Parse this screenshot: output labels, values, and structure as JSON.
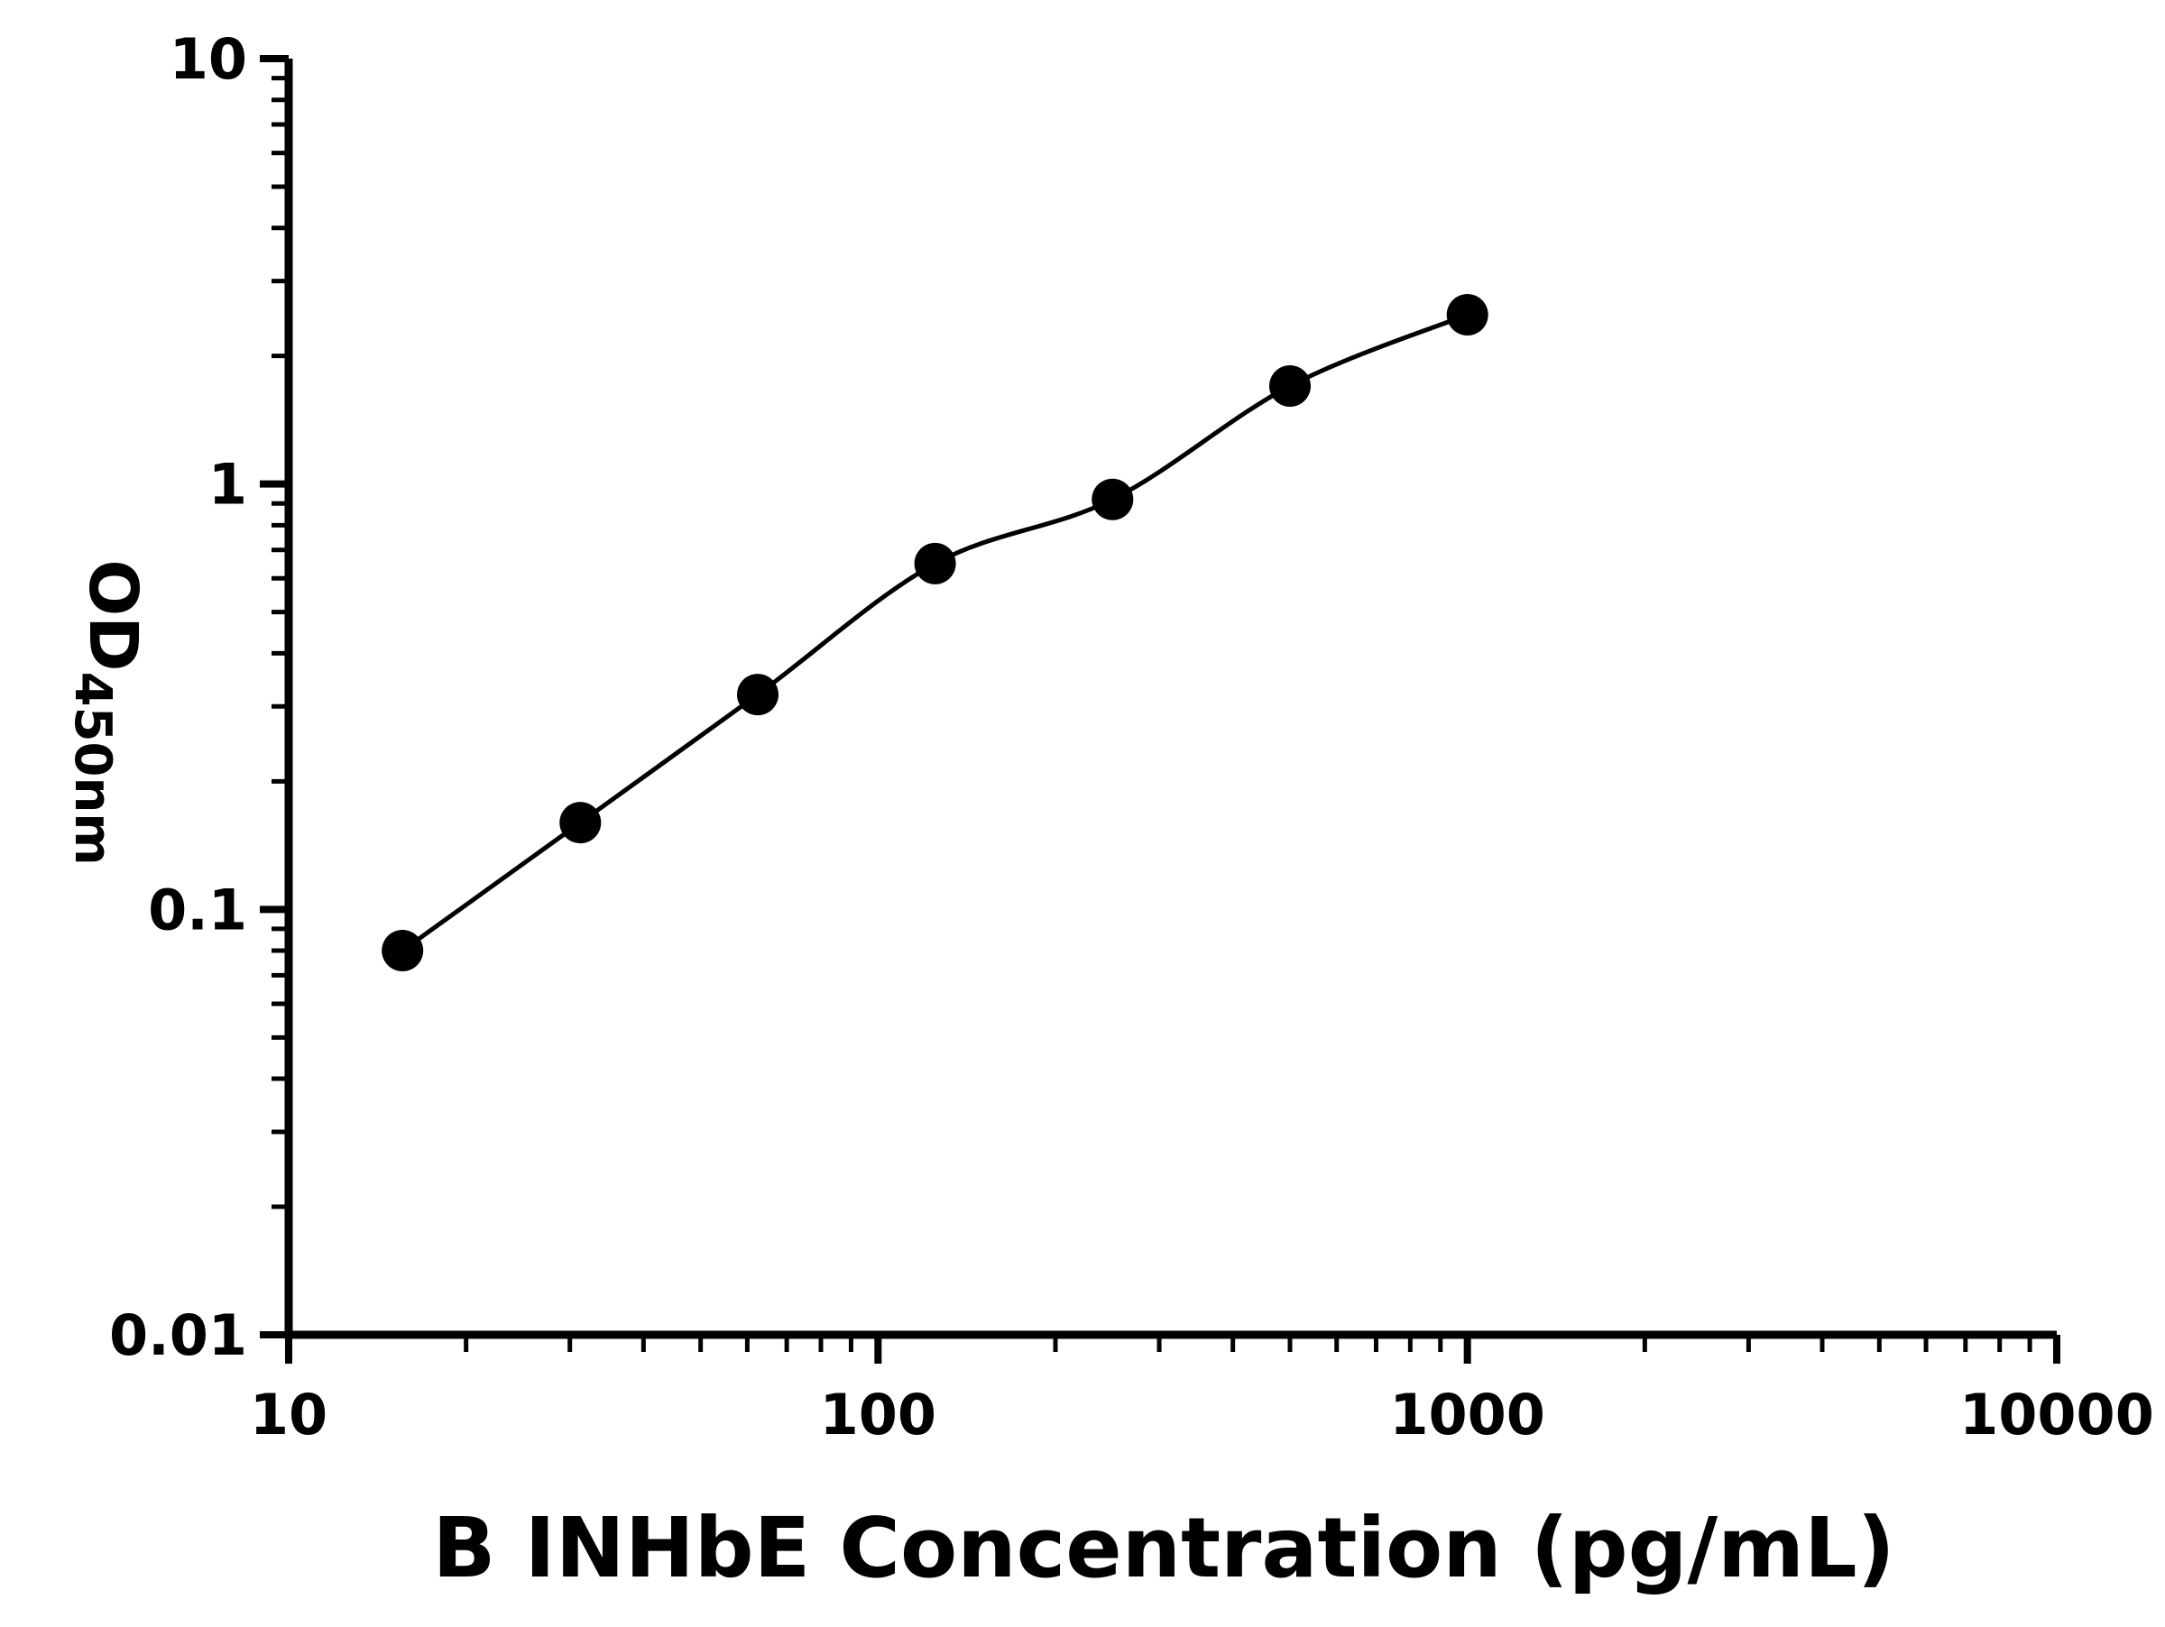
{
  "figure": {
    "background_color": "#ffffff"
  },
  "chart_data": {
    "type": "scatter",
    "subtype": "elisa-standard-curve",
    "title": "",
    "xlabel": "B INHbE Concentration (pg/mL)",
    "ylabel": "OD450nm",
    "ylabel_main": "OD",
    "ylabel_sub": "450nm",
    "x": [
      15.6,
      31.25,
      62.5,
      125,
      250,
      500,
      1000
    ],
    "y": [
      0.08,
      0.16,
      0.32,
      0.65,
      0.92,
      1.7,
      2.5
    ],
    "xscale": "log",
    "yscale": "log",
    "xlim": [
      10,
      10000
    ],
    "ylim": [
      0.01,
      10
    ],
    "x_tick_values": [
      10,
      100,
      1000,
      10000
    ],
    "x_tick_labels": [
      "10",
      "100",
      "1000",
      "10000"
    ],
    "y_tick_values": [
      0.01,
      0.1,
      1,
      10
    ],
    "y_tick_labels": [
      "0.01",
      "0.1",
      "1",
      "10"
    ],
    "grid": false,
    "legend": "none",
    "marker": "filled-circle",
    "marker_color": "#000000",
    "line_color": "#000000",
    "axis_color": "#000000"
  }
}
